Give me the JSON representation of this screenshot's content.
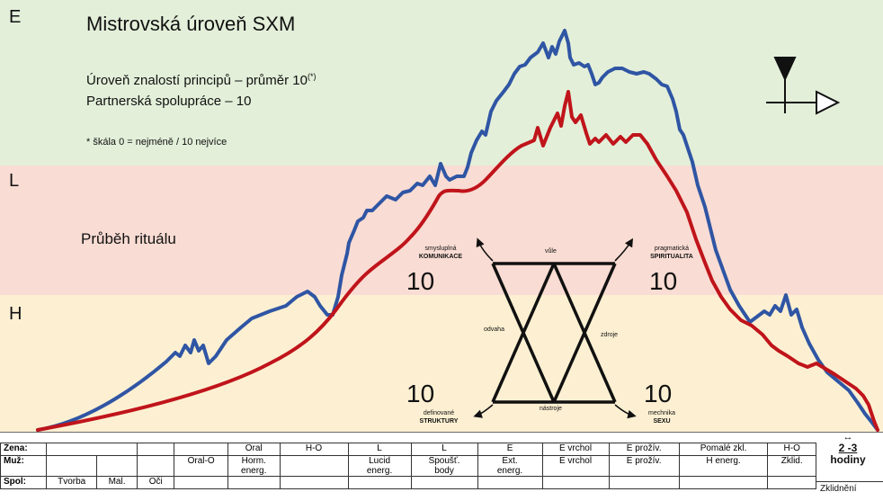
{
  "bands": {
    "e": "E",
    "l": "L",
    "h": "H"
  },
  "header": {
    "title": "Mistrovská úroveň SXM",
    "line1": "Úroveň znalostí principů – průměr 10",
    "line1_sup": "(*)",
    "line2": "Partnerská spolupráce – 10",
    "footnote": "* škála 0 = nejméně / 10 nejvíce"
  },
  "ritual_label": "Průběh rituálu",
  "diagram": {
    "top_left": {
      "line1": "smysluplná",
      "line2": "KOMUNIKACE",
      "score": "10"
    },
    "top_right": {
      "line1": "pragmatická",
      "line2": "SPIRITUALITA",
      "score": "10"
    },
    "bottom_left": {
      "line1": "definované",
      "line2": "STRUKTURY",
      "score": "10"
    },
    "bottom_right": {
      "line1": "mechnika",
      "line2": "SEXU",
      "score": "10"
    },
    "top_edge": "vůle",
    "bottom_edge": "nástroje",
    "left_edge": "odvaha",
    "right_edge": "zdroje"
  },
  "curves": {
    "blue_color": "#2f55a4",
    "red_color": "#c0141b"
  },
  "table": {
    "row_labels": [
      "Žena:",
      "Muž:",
      "Spol:"
    ],
    "zena": [
      "",
      "",
      "",
      "Oral",
      "H-O",
      "L",
      "L",
      "E",
      "E vrchol",
      "E prožív.",
      "Pomalé zkl.",
      "H-O"
    ],
    "muz": [
      [
        "",
        ""
      ],
      [
        "",
        ""
      ],
      [
        "",
        ""
      ],
      [
        "Oral-O",
        ""
      ],
      [
        "Horm.",
        "energ."
      ],
      [
        "",
        ""
      ],
      [
        "Lucid",
        "energ."
      ],
      [
        "Spoušť.",
        "body"
      ],
      [
        "Ext.",
        "energ."
      ],
      [
        "E vrchol",
        ""
      ],
      [
        "E prožív.",
        ""
      ],
      [
        "H energ.",
        ""
      ],
      [
        "Zklid.",
        ""
      ]
    ],
    "spol": [
      "Tvorba",
      "Mal.",
      "Oči",
      "",
      "",
      "",
      "",
      "",
      "",
      "",
      "",
      "",
      ""
    ]
  },
  "duration": {
    "arrow": "↔",
    "value": "2 -3",
    "unit": "hodiny"
  },
  "calm_label": "Zklidnění"
}
